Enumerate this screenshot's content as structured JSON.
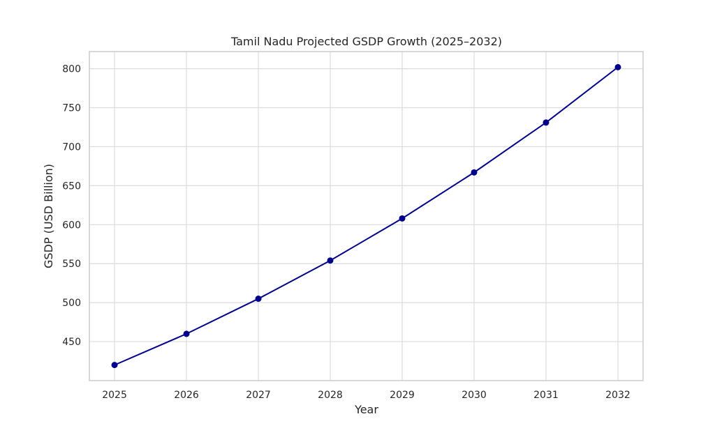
{
  "chart_data": {
    "type": "line",
    "title": "Tamil Nadu Projected GSDP Growth (2025–2032)",
    "xlabel": "Year",
    "ylabel": "GSDP (USD Billion)",
    "x": [
      2025,
      2026,
      2027,
      2028,
      2029,
      2030,
      2031,
      2032
    ],
    "x_tick_labels": [
      "2025",
      "2026",
      "2027",
      "2028",
      "2029",
      "2030",
      "2031",
      "2032"
    ],
    "y_ticks": [
      450,
      500,
      550,
      600,
      650,
      700,
      750,
      800
    ],
    "y_tick_labels": [
      "450",
      "500",
      "550",
      "600",
      "650",
      "700",
      "750",
      "800"
    ],
    "xlim": [
      2024.65,
      2032.35
    ],
    "ylim": [
      400,
      822
    ],
    "series": [
      {
        "values": [
          420,
          460,
          505,
          554,
          608,
          667,
          731,
          802
        ]
      }
    ],
    "grid": true,
    "legend": "none",
    "colors": {
      "line": "#00008b",
      "grid": "#dcdcdc",
      "frame": "#cccccc",
      "text": "#262626"
    }
  }
}
